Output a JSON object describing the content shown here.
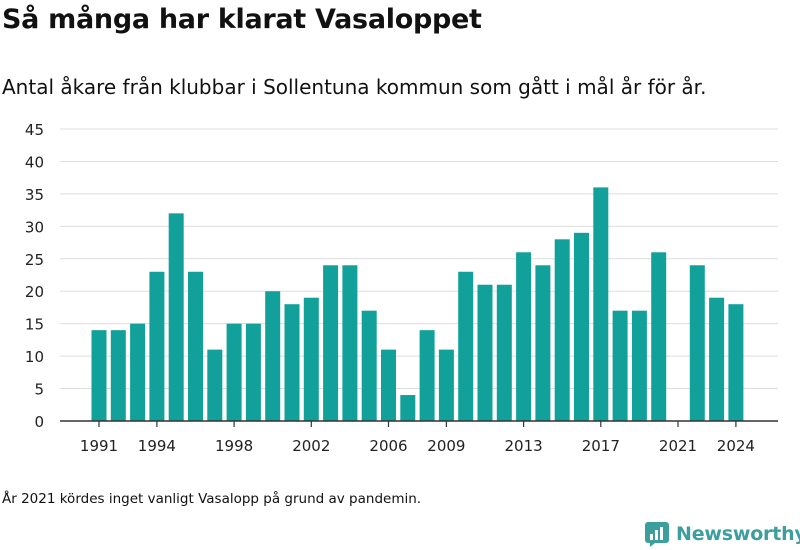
{
  "title": "Så många har klarat Vasaloppet",
  "subtitle": "Antal åkare från klubbar i Sollentuna kommun som gått i mål år för år.",
  "footnote": "År 2021 kördes inget vanligt Vasalopp på grund av pandemin.",
  "brand": {
    "name": "Newsworthy",
    "color": "#3d9e9e",
    "icon": "newsworthy-logo-icon"
  },
  "chart_data": {
    "type": "bar",
    "title": "",
    "xlabel": "",
    "ylabel": "",
    "bar_color": "#12a19a",
    "grid": true,
    "ylim": [
      0,
      45
    ],
    "yticks": [
      0,
      5,
      10,
      15,
      20,
      25,
      30,
      35,
      40,
      45
    ],
    "xtick_labels": [
      "1991",
      "1994",
      "1998",
      "2002",
      "2006",
      "2009",
      "2013",
      "2017",
      "2021",
      "2024"
    ],
    "categories": [
      1991,
      1992,
      1993,
      1994,
      1995,
      1996,
      1997,
      1998,
      1999,
      2000,
      2001,
      2002,
      2003,
      2004,
      2005,
      2006,
      2007,
      2008,
      2009,
      2010,
      2011,
      2012,
      2013,
      2014,
      2015,
      2016,
      2017,
      2018,
      2019,
      2020,
      2021,
      2022,
      2023,
      2024
    ],
    "values": [
      14,
      14,
      15,
      23,
      32,
      23,
      11,
      15,
      15,
      20,
      18,
      19,
      24,
      24,
      17,
      11,
      4,
      14,
      11,
      23,
      21,
      21,
      26,
      24,
      28,
      29,
      36,
      17,
      17,
      26,
      null,
      24,
      19,
      18
    ]
  }
}
